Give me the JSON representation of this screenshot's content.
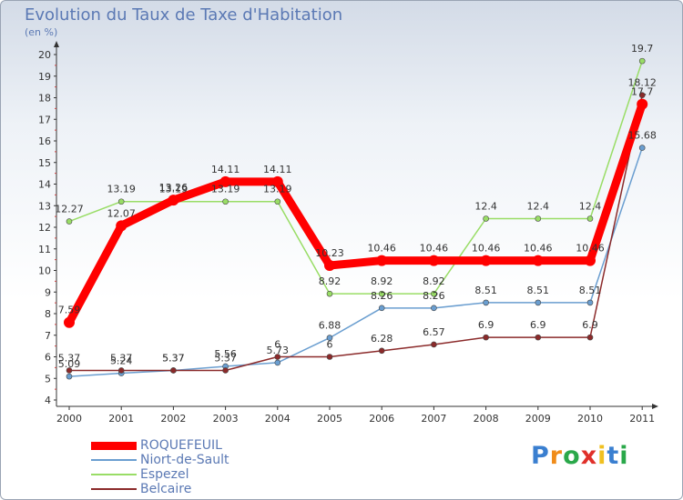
{
  "title": "Evolution du Taux de Taxe d'Habitation",
  "subtitle": "(en %)",
  "logo_text": "Proxiti",
  "chart_data": {
    "type": "line",
    "title": "Evolution du Taux de Taxe d'Habitation",
    "ylabel": "(en %)",
    "ylim": [
      4,
      20
    ],
    "yticks": [
      4,
      5,
      6,
      7,
      8,
      9,
      10,
      11,
      12,
      13,
      14,
      15,
      16,
      17,
      18,
      19,
      20
    ],
    "grid": false,
    "legend_position": "bottom-left",
    "categories": [
      "2000",
      "2001",
      "2002",
      "2003",
      "2004",
      "2005",
      "2006",
      "2007",
      "2008",
      "2009",
      "2010",
      "2011"
    ],
    "series": [
      {
        "name": "ROQUEFEUIL",
        "color": "#ff0000",
        "values": [
          7.59,
          12.07,
          13.26,
          14.11,
          14.11,
          10.23,
          10.46,
          10.46,
          10.46,
          10.46,
          10.46,
          17.7
        ],
        "labels": [
          "7.59",
          "12.07",
          "13.26",
          "14.11",
          "14.11",
          "10.23",
          "10.46",
          "10.46",
          "10.46",
          "10.46",
          "10.46",
          "17.7"
        ]
      },
      {
        "name": "Niort-de-Sault",
        "color": "#6a9ed0",
        "values": [
          5.09,
          5.24,
          5.37,
          5.56,
          5.73,
          6.88,
          8.26,
          8.26,
          8.51,
          8.51,
          8.51,
          15.68
        ],
        "labels": [
          "5.09",
          "5.24",
          "5.37",
          "5.56",
          "5.73",
          "6.88",
          "8.26",
          "8.26",
          "8.51",
          "8.51",
          "8.51",
          "15.68"
        ]
      },
      {
        "name": "Espezel",
        "color": "#99dd66",
        "values": [
          12.27,
          13.19,
          13.19,
          13.19,
          13.19,
          8.92,
          8.92,
          8.92,
          12.4,
          12.4,
          12.4,
          19.7
        ],
        "labels": [
          "12.27",
          "13.19",
          "13.19",
          "13.19",
          "13.19",
          "8.92",
          "8.92",
          "8.92",
          "12.4",
          "12.4",
          "12.4",
          "19.7"
        ]
      },
      {
        "name": "Belcaire",
        "color": "#8b2a2a",
        "values": [
          5.37,
          5.37,
          5.37,
          5.37,
          6,
          6,
          6.28,
          6.57,
          6.9,
          6.9,
          6.9,
          18.12
        ],
        "labels": [
          "5.37",
          "5.37",
          "5.37",
          "5.37",
          "6",
          "6",
          "6.28",
          "6.57",
          "6.9",
          "6.9",
          "6.9",
          "18.12"
        ]
      }
    ]
  }
}
